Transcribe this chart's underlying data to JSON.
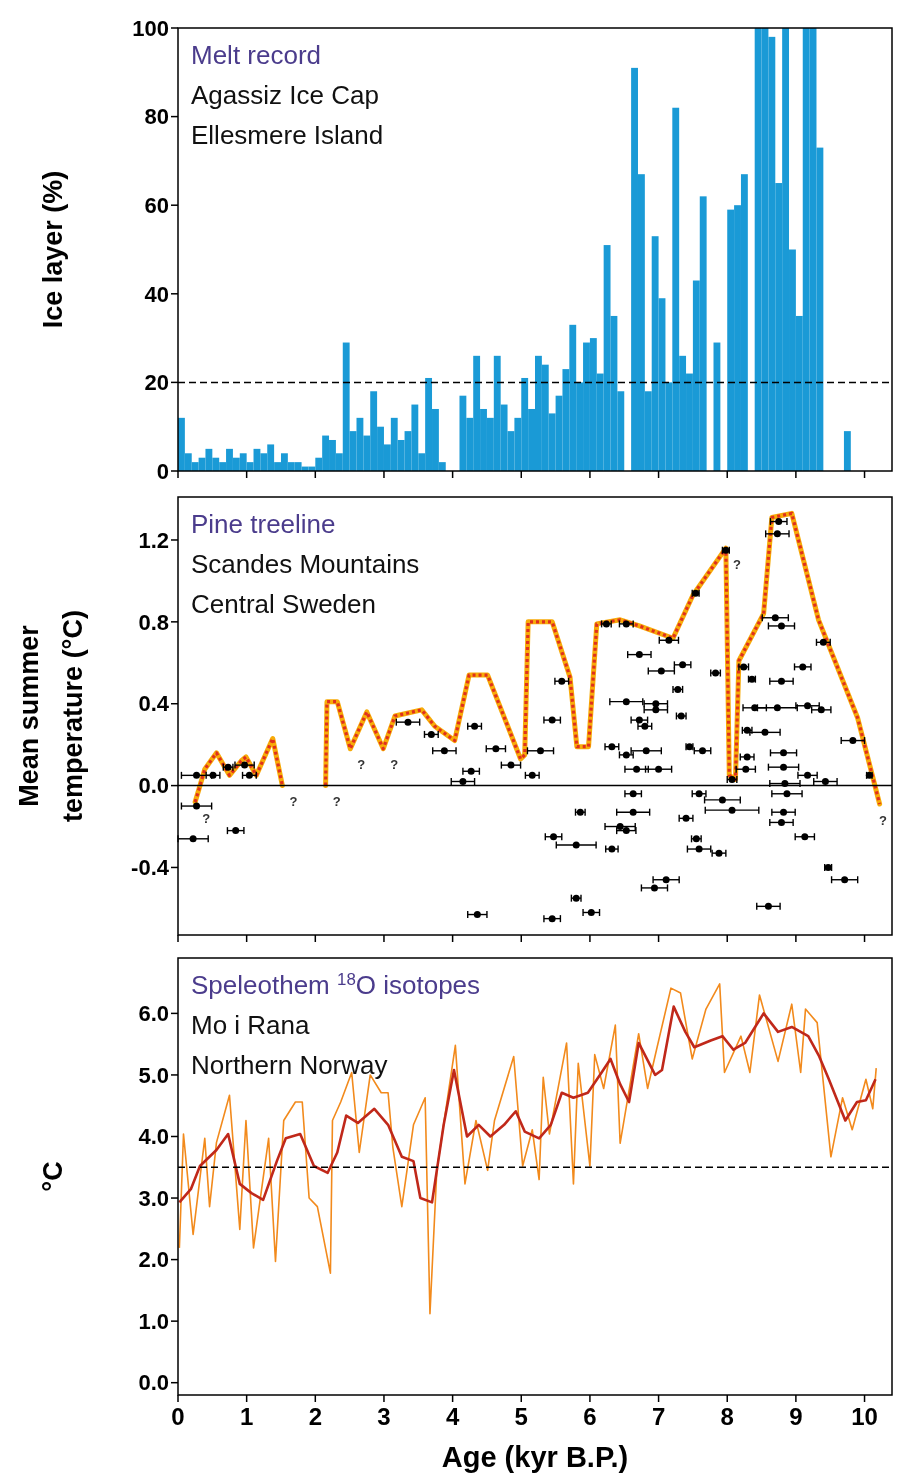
{
  "chart_data": [
    {
      "type": "histogram",
      "title": "Melt record",
      "annotations": [
        "Agassiz Ice Cap",
        "Ellesmere Island"
      ],
      "ylabel": "Ice layer (%)",
      "color": "#1a9ad6",
      "bins": [
        0,
        0.1,
        0.2,
        0.3,
        0.4,
        0.5,
        0.6,
        0.7,
        0.8,
        0.9,
        1,
        1.1,
        1.2,
        1.3,
        1.4,
        1.5,
        1.6,
        1.7,
        1.8,
        1.9,
        2,
        2.1,
        2.2,
        2.3,
        2.4,
        2.5,
        2.6,
        2.7,
        2.8,
        2.9,
        3,
        3.1,
        3.2,
        3.3,
        3.4,
        3.5,
        3.6,
        3.7,
        3.8,
        3.9,
        4,
        4.1,
        4.2,
        4.3,
        4.4,
        4.5,
        4.6,
        4.7,
        4.8,
        4.9,
        5,
        5.1,
        5.2,
        5.3,
        5.4,
        5.5,
        5.6,
        5.7,
        5.8,
        5.9,
        6,
        6.1,
        6.2,
        6.3,
        6.4,
        6.5,
        6.6,
        6.7,
        6.8,
        6.9,
        7,
        7.1,
        7.2,
        7.3,
        7.4,
        7.5,
        7.6,
        7.7,
        7.8,
        7.9,
        8,
        8.1,
        8.2,
        8.3,
        8.4,
        8.5,
        8.6,
        8.7,
        8.8,
        8.9,
        9,
        9.1,
        9.2,
        9.3,
        9.4,
        9.5,
        9.6,
        9.7,
        9.8
      ],
      "values": [
        12,
        4,
        2,
        3,
        5,
        3,
        2,
        5,
        3,
        4,
        2,
        5,
        4,
        6,
        2,
        4,
        2,
        2,
        1,
        1,
        3,
        8,
        7,
        4,
        29,
        9,
        12,
        8,
        18,
        10,
        6,
        12,
        7,
        9,
        15,
        4,
        21,
        14,
        2,
        0,
        0,
        17,
        12,
        26,
        14,
        12,
        26,
        15,
        9,
        12,
        21,
        14,
        26,
        24,
        13,
        17,
        23,
        33,
        20,
        29,
        30,
        22,
        51,
        35,
        18,
        0,
        91,
        67,
        18,
        53,
        39,
        20,
        82,
        26,
        22,
        43,
        62,
        0,
        29,
        0,
        59,
        60,
        67,
        0,
        100,
        100,
        98,
        65,
        100,
        50,
        35,
        100,
        100,
        73,
        0,
        0,
        0,
        9
      ],
      "xlim": [
        0,
        10.4
      ],
      "xticks": [
        0,
        1,
        2,
        3,
        4,
        5,
        6,
        7,
        8,
        9,
        10
      ],
      "ylim": [
        0,
        100
      ],
      "yticks": [
        0,
        20,
        40,
        60,
        80,
        100
      ],
      "tick_labels": "y",
      "ref_lines": [
        {
          "axis": "y",
          "value": 20,
          "color": "#000000",
          "line_style": "dashed"
        }
      ]
    },
    {
      "type": "line",
      "title": "Pine treeline",
      "annotations": [
        "Scandes Mountains",
        "Central Sweden",
        {
          "text": "?",
          "x": 0.25,
          "y": -0.08
        },
        {
          "text": "?",
          "x": 1.52,
          "y": 0.0
        },
        {
          "text": "?",
          "x": 2.15,
          "y": 0.0
        },
        {
          "text": "?",
          "x": 2.51,
          "y": 0.18
        },
        {
          "text": "?",
          "x": 2.99,
          "y": 0.18
        },
        {
          "text": "?",
          "x": 7.98,
          "y": 1.16
        },
        {
          "text": "?",
          "x": 10.22,
          "y": -0.09
        }
      ],
      "ylabel": "Mean summer temperature (°C)",
      "xlim": [
        0,
        10.4
      ],
      "xticks": [
        0,
        1,
        2,
        3,
        4,
        5,
        6,
        7,
        8,
        9,
        10
      ],
      "ylim": [
        -0.73,
        1.41
      ],
      "yticks": [
        {
          "value": -0.4,
          "label": "-0.4"
        },
        {
          "value": 0,
          "label": "0.0"
        },
        {
          "value": 0.4,
          "label": "0.4"
        },
        {
          "value": 0.8,
          "label": "0.8"
        },
        {
          "value": 1.2,
          "label": "1.2"
        }
      ],
      "tick_labels": "y",
      "ref_lines": [
        {
          "axis": "y",
          "value": 0,
          "color": "#000000",
          "line_style": "solid"
        }
      ],
      "series": [
        {
          "type": "line",
          "color": "#e0301e",
          "line_style": "dotted",
          "x": [
            0.25,
            0.39,
            0.56,
            0.75,
            0.92,
            0.99,
            1.14,
            1.38,
            1.52,
            1.8,
            2.15,
            2.17,
            2.32,
            2.51,
            2.75,
            2.99,
            3.16,
            3.55,
            3.74,
            4.03,
            4.24,
            4.51,
            4.99,
            5.05,
            5.1,
            5.45,
            5.71,
            5.81,
            5.98,
            6.1,
            6.44,
            6.72,
            7.21,
            7.5,
            7.98,
            8.03,
            8.12,
            8.17,
            8.53,
            8.65,
            8.94,
            9.33,
            9.9,
            10.22
          ],
          "values": [
            -0.08,
            0.08,
            0.16,
            0.05,
            0.12,
            0.14,
            0.05,
            0.23,
            0.0,
            null,
            0.0,
            0.41,
            0.41,
            0.18,
            0.36,
            0.18,
            0.34,
            0.37,
            0.29,
            0.22,
            0.54,
            0.54,
            0.13,
            0.15,
            0.8,
            0.8,
            0.53,
            0.19,
            0.19,
            0.79,
            0.81,
            0.78,
            0.72,
            0.93,
            1.16,
            0.05,
            0.03,
            0.61,
            0.84,
            1.31,
            1.33,
            0.81,
            0.33,
            -0.09
          ]
        },
        {
          "type": "scatter",
          "color": "#000000",
          "marker": "circle",
          "x": [
            0.27,
            0.51,
            0.27,
            0.22,
            0.84,
            0.73,
            1.04,
            0.97,
            3.35,
            3.69,
            3.88,
            4.32,
            4.63,
            4.85,
            4.15,
            4.27,
            4.36,
            5.59,
            5.45,
            5.28,
            5.16,
            6.72,
            7.04,
            7.35,
            7.83,
            7.28,
            6.53,
            6.96,
            6.96,
            7.33,
            6.72,
            6.8,
            6.32,
            6.82,
            6.53,
            7.64,
            7.45,
            6.68,
            7.0,
            6.63,
            7.59,
            7.93,
            8.07,
            7.4,
            5.86,
            6.63,
            6.44,
            6.53,
            5.47,
            5.8,
            6.32,
            7.59,
            7.88,
            7.55,
            7.11,
            6.94,
            5.8,
            6.02,
            5.45,
            8.6,
            8.79,
            8.82,
            9.13,
            9.47,
            9.71,
            8.87,
            8.84,
            9.17,
            9.43,
            8.82,
            8.27,
            8.82,
            8.29,
            8.55,
            8.29,
            9.17,
            8.4,
            8.73,
            9.37,
            9.83,
            8.79,
            9.1,
            8.24,
            8.36,
            8.7,
            8.79,
            9.4,
            8.73,
            8.75,
            7.98,
            7.54,
            6.24,
            6.53,
            7.15,
            10.07,
            8.07
          ],
          "values": [
            0.05,
            0.05,
            -0.1,
            -0.26,
            -0.22,
            0.09,
            0.05,
            0.1,
            0.31,
            0.25,
            0.17,
            0.29,
            0.18,
            0.1,
            0.02,
            0.07,
            -0.63,
            0.51,
            0.32,
            0.17,
            0.05,
            0.64,
            0.56,
            0.59,
            0.55,
            0.47,
            0.41,
            0.4,
            0.37,
            0.34,
            0.32,
            0.29,
            0.19,
            0.17,
            0.15,
            0.17,
            0.19,
            0.08,
            0.08,
            -0.04,
            -0.04,
            -0.07,
            -0.12,
            -0.16,
            -0.13,
            -0.13,
            -0.2,
            -0.22,
            -0.25,
            -0.29,
            -0.31,
            -0.31,
            -0.33,
            -0.26,
            -0.46,
            -0.5,
            -0.55,
            -0.62,
            -0.65,
            -0.59,
            -0.18,
            -0.13,
            -0.25,
            -0.4,
            -0.46,
            -0.04,
            0.01,
            0.05,
            0.02,
            0.09,
            0.08,
            0.16,
            0.14,
            0.26,
            0.27,
            0.39,
            0.38,
            0.38,
            0.37,
            0.22,
            0.51,
            0.58,
            0.58,
            0.52,
            0.82,
            0.78,
            0.7,
            1.23,
            1.29,
            1.15,
            0.94,
            0.79,
            0.79,
            0.71,
            0.05,
            0.03
          ],
          "xerrors": [
            0.22,
            0.1,
            0.22,
            0.22,
            0.12,
            0.07,
            0.1,
            0.14,
            0.17,
            0.1,
            0.17,
            0.1,
            0.14,
            0.14,
            0.17,
            0.12,
            0.14,
            0.1,
            0.12,
            0.19,
            0.1,
            0.17,
            0.19,
            0.12,
            0.07,
            0.07,
            0.24,
            0.17,
            0.17,
            0.07,
            0.12,
            0.1,
            0.1,
            0.22,
            0.1,
            0.12,
            0.05,
            0.17,
            0.19,
            0.12,
            0.1,
            0.26,
            0.39,
            0.1,
            0.07,
            0.24,
            0.22,
            0.14,
            0.12,
            0.29,
            0.09,
            0.17,
            0.1,
            0.07,
            0.19,
            0.19,
            0.07,
            0.12,
            0.12,
            0.17,
            0.17,
            0.17,
            0.14,
            0.05,
            0.19,
            0.22,
            0.22,
            0.14,
            0.17,
            0.22,
            0.14,
            0.19,
            0.1,
            0.22,
            0.07,
            0.17,
            0.17,
            0.29,
            0.14,
            0.17,
            0.17,
            0.12,
            0.07,
            0.05,
            0.19,
            0.19,
            0.1,
            0.17,
            0.12,
            0.05,
            0.05,
            0.07,
            0.1,
            0.14,
            0.04,
            0.07
          ]
        }
      ]
    },
    {
      "type": "line",
      "title": "Speleothem $^{18}$O isotopes",
      "annotations": [
        "Mo i Rana",
        "Northern Norway"
      ],
      "ylabel": "°C",
      "xlabel": "Age (kyr B.P.)",
      "xlim": [
        0,
        10.4
      ],
      "xticks": [
        0,
        1,
        2,
        3,
        4,
        5,
        6,
        7,
        8,
        9,
        10
      ],
      "ylim": [
        -0.2,
        6.9
      ],
      "yticks": [
        {
          "value": 0,
          "label": "0.0"
        },
        {
          "value": 1,
          "label": "1.0"
        },
        {
          "value": 2,
          "label": "2.0"
        },
        {
          "value": 3,
          "label": "3.0"
        },
        {
          "value": 4,
          "label": "4.0"
        },
        {
          "value": 5,
          "label": "5.0"
        },
        {
          "value": 6,
          "label": "6.0"
        }
      ],
      "ref_lines": [
        {
          "axis": "y",
          "value": 3.5,
          "color": "#000000",
          "line_style": "dashed"
        }
      ],
      "series": [
        {
          "type": "line",
          "color": "#f28a1c",
          "line_style": "solid",
          "x": [
            0.02,
            0.08,
            0.22,
            0.39,
            0.46,
            0.56,
            0.75,
            0.9,
            0.99,
            1.1,
            1.32,
            1.42,
            1.54,
            1.71,
            1.81,
            1.91,
            2.03,
            2.22,
            2.25,
            2.37,
            2.53,
            2.64,
            2.8,
            2.96,
            3.06,
            3.13,
            3.26,
            3.43,
            3.6,
            3.67,
            3.77,
            4.04,
            4.18,
            4.34,
            4.51,
            4.61,
            4.89,
            5.02,
            5.16,
            5.26,
            5.32,
            5.41,
            5.66,
            5.76,
            5.83,
            6.0,
            6.07,
            6.2,
            6.37,
            6.44,
            6.71,
            6.84,
            6.97,
            7.18,
            7.32,
            7.49,
            7.69,
            7.89,
            7.96,
            8.2,
            8.33,
            8.47,
            8.74,
            8.94,
            9.07,
            9.14,
            9.31,
            9.51,
            9.68,
            9.82,
            10.02,
            10.12,
            10.17
          ],
          "values": [
            2.19,
            4.04,
            2.41,
            3.97,
            2.86,
            3.9,
            4.67,
            2.49,
            4.26,
            2.19,
            3.97,
            1.97,
            4.26,
            4.56,
            4.56,
            3.0,
            2.86,
            1.78,
            4.26,
            4.56,
            5.04,
            3.74,
            5.0,
            4.71,
            4.71,
            3.82,
            2.86,
            4.19,
            4.63,
            1.12,
            3.45,
            5.48,
            3.23,
            4.26,
            3.45,
            4.26,
            5.3,
            3.52,
            4.11,
            3.3,
            4.96,
            4.04,
            5.52,
            3.23,
            5.19,
            3.52,
            5.33,
            4.78,
            5.81,
            3.89,
            5.67,
            4.78,
            5.41,
            6.41,
            6.33,
            5.26,
            6.07,
            6.48,
            5.04,
            5.63,
            5.04,
            6.3,
            5.22,
            6.15,
            5.04,
            6.07,
            5.85,
            3.67,
            4.63,
            4.11,
            4.93,
            4.45,
            5.11
          ]
        },
        {
          "type": "line",
          "color": "#c0281a",
          "line_style": "solid",
          "x": [
            0.02,
            0.19,
            0.32,
            0.56,
            0.73,
            0.9,
            1.07,
            1.24,
            1.44,
            1.57,
            1.78,
            1.98,
            2.18,
            2.32,
            2.45,
            2.62,
            2.86,
            3.06,
            3.26,
            3.43,
            3.53,
            3.7,
            3.87,
            4.02,
            4.21,
            4.38,
            4.55,
            4.75,
            4.92,
            5.05,
            5.26,
            5.43,
            5.59,
            5.76,
            5.97,
            6.17,
            6.3,
            6.44,
            6.57,
            6.71,
            6.95,
            7.05,
            7.22,
            7.39,
            7.52,
            7.76,
            7.93,
            8.09,
            8.26,
            8.53,
            8.74,
            8.94,
            9.18,
            9.34,
            9.48,
            9.72,
            9.89,
            10.02,
            10.16
          ],
          "values": [
            2.93,
            3.15,
            3.52,
            3.78,
            4.04,
            3.23,
            3.08,
            2.97,
            3.6,
            3.97,
            4.04,
            3.52,
            3.41,
            3.74,
            4.34,
            4.22,
            4.45,
            4.19,
            3.67,
            3.6,
            3.0,
            2.93,
            4.19,
            5.08,
            4.0,
            4.19,
            4.0,
            4.19,
            4.41,
            4.08,
            3.97,
            4.19,
            4.71,
            4.63,
            4.71,
            5.04,
            5.26,
            4.85,
            4.56,
            5.52,
            5.0,
            5.08,
            6.11,
            5.7,
            5.45,
            5.56,
            5.63,
            5.41,
            5.52,
            6.0,
            5.7,
            5.78,
            5.63,
            5.3,
            4.93,
            4.26,
            4.56,
            4.59,
            4.93
          ]
        }
      ]
    }
  ]
}
